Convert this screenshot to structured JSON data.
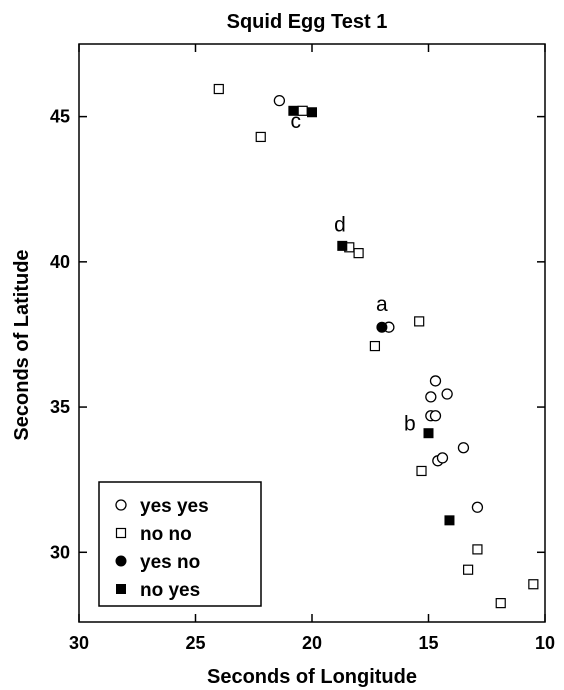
{
  "chart_data": {
    "type": "scatter",
    "title": "Squid Egg Test 1",
    "xlabel": "Seconds of Longitude",
    "ylabel": "Seconds of Latitude",
    "xlim": [
      30,
      10
    ],
    "ylim": [
      27.6,
      47.5
    ],
    "x_reversed": true,
    "x_ticks": [
      30,
      25,
      20,
      15,
      10
    ],
    "y_ticks": [
      30,
      35,
      40,
      45
    ],
    "grid": false,
    "legend_position": "bottom-left",
    "series": [
      {
        "name": "yes yes",
        "marker": "open-circle",
        "points": [
          {
            "x": 21.4,
            "y": 45.55
          },
          {
            "x": 16.7,
            "y": 37.75
          },
          {
            "x": 14.7,
            "y": 35.9
          },
          {
            "x": 14.9,
            "y": 35.35
          },
          {
            "x": 14.2,
            "y": 35.45
          },
          {
            "x": 14.9,
            "y": 34.7
          },
          {
            "x": 14.7,
            "y": 34.7
          },
          {
            "x": 13.5,
            "y": 33.6
          },
          {
            "x": 14.6,
            "y": 33.15
          },
          {
            "x": 14.4,
            "y": 33.25
          },
          {
            "x": 12.9,
            "y": 31.55
          }
        ]
      },
      {
        "name": "no no",
        "marker": "open-square",
        "points": [
          {
            "x": 24.0,
            "y": 45.95
          },
          {
            "x": 22.2,
            "y": 44.3
          },
          {
            "x": 20.4,
            "y": 45.2
          },
          {
            "x": 18.4,
            "y": 40.5
          },
          {
            "x": 18.0,
            "y": 40.3
          },
          {
            "x": 17.3,
            "y": 37.1
          },
          {
            "x": 15.4,
            "y": 37.95
          },
          {
            "x": 15.3,
            "y": 32.8
          },
          {
            "x": 12.9,
            "y": 30.1
          },
          {
            "x": 13.3,
            "y": 29.4
          },
          {
            "x": 11.9,
            "y": 28.25
          },
          {
            "x": 10.5,
            "y": 28.9
          }
        ]
      },
      {
        "name": "yes no",
        "marker": "filled-circle",
        "points": [
          {
            "x": 17.0,
            "y": 37.75
          }
        ]
      },
      {
        "name": "no yes",
        "marker": "filled-square",
        "points": [
          {
            "x": 20.8,
            "y": 45.2
          },
          {
            "x": 20.0,
            "y": 45.15
          },
          {
            "x": 18.7,
            "y": 40.55
          },
          {
            "x": 15.0,
            "y": 34.1
          },
          {
            "x": 14.1,
            "y": 31.1
          }
        ]
      }
    ],
    "annotations": [
      {
        "text": "c",
        "x": 20.7,
        "y": 44.6
      },
      {
        "text": "d",
        "x": 18.8,
        "y": 41.05
      },
      {
        "text": "a",
        "x": 17.0,
        "y": 38.3
      },
      {
        "text": "b",
        "x": 15.8,
        "y": 34.2
      }
    ]
  }
}
